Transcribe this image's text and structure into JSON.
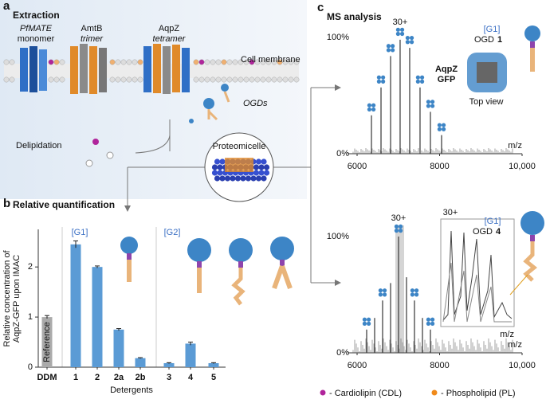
{
  "panel_a": {
    "label": "a",
    "title": "Extraction",
    "proteins": [
      {
        "name": "PfMATE",
        "state": "monomer"
      },
      {
        "name": "AmtB",
        "state": "trimer"
      },
      {
        "name": "AqpZ",
        "state": "tetramer"
      }
    ],
    "membrane": "Cell membrane",
    "ogds": "OGDs",
    "delipidation": "Delipidation",
    "proteomicelle": "Proteomicelle"
  },
  "panel_c": {
    "label": "c",
    "title": "MS analysis",
    "top": {
      "charge": "30+",
      "group": "[G1]",
      "ogd": "OGD",
      "ogd_number": "1",
      "protein": "AqpZ",
      "tag": "GFP",
      "view": "Top view"
    },
    "bottom": {
      "charge": "30+",
      "inset_charge": "30+",
      "group": "[G1]",
      "ogd": "OGD",
      "ogd_number": "4",
      "inset_axis": "m/z"
    },
    "legend": [
      "- Cardiolipin (CDL)",
      "- Phospholipid (PL)"
    ]
  },
  "chart_data": [
    {
      "type": "bar",
      "label": "b",
      "title": "Relative quantification",
      "categories": [
        "DDM",
        "1",
        "2",
        "2a",
        "2b",
        "3",
        "4",
        "5"
      ],
      "values": [
        1.0,
        2.45,
        2.0,
        0.75,
        0.18,
        0.08,
        0.47,
        0.08
      ],
      "errors": [
        0.03,
        0.07,
        0.02,
        0.02,
        0.01,
        0.01,
        0.03,
        0.01
      ],
      "color": "#5b9bd5",
      "ylim": [
        0,
        2.75
      ],
      "yticks": [
        0,
        1,
        2
      ],
      "y_label": [
        "Relative concentration of",
        "AqpZ-GFP upon IMAC"
      ],
      "x_label": "Detergents",
      "reference": "Reference",
      "groups": [
        "[G1]",
        "[G2]"
      ]
    },
    {
      "type": "spectrum",
      "x": [
        6348,
        6580,
        6812,
        7043,
        7275,
        7526,
        7778,
        8048
      ],
      "values": [
        33,
        57,
        84,
        98,
        91,
        57,
        36,
        16
      ],
      "color": "#444",
      "xlim": [
        6000,
        10000
      ],
      "xticks": [
        6000,
        8000,
        {
          "value": 10000,
          "label": "10,000"
        }
      ],
      "ylim": [
        0,
        100
      ],
      "yticks": [
        {
          "value": 0,
          "label": "0%"
        },
        {
          "value": 100,
          "label": "100%"
        }
      ],
      "x_label": "m/z"
    },
    {
      "type": "spectrum",
      "x": [
        6232,
        6425,
        6618,
        6812,
        7005,
        7198,
        7391,
        7585,
        7778
      ],
      "values": [
        20,
        30,
        45,
        60,
        100,
        65,
        45,
        30,
        20
      ],
      "color": "#444",
      "xlim": [
        6000,
        10000
      ],
      "xticks": [
        6000,
        8000,
        {
          "value": 10000,
          "label": "10,000"
        }
      ],
      "ylim": [
        0,
        100
      ],
      "yticks": [
        {
          "value": 0,
          "label": "0%"
        },
        {
          "value": 100,
          "label": "100%"
        }
      ],
      "x_label": "m/z"
    }
  ]
}
